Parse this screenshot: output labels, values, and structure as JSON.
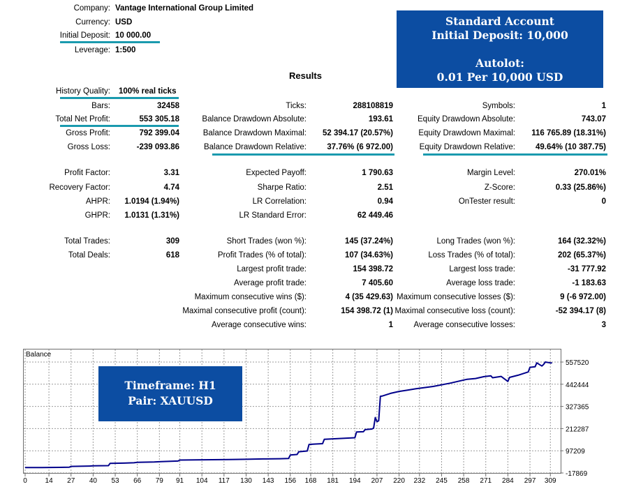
{
  "header": {
    "company_label": "Company:",
    "company": "Vantage International Group Limited",
    "currency_label": "Currency:",
    "currency": "USD",
    "initial_deposit_label": "Initial Deposit:",
    "initial_deposit": "10 000.00",
    "leverage_label": "Leverage:",
    "leverage": "1:500"
  },
  "results_title": "Results",
  "account_box": {
    "line1": "Standard Account",
    "line2": "Initial Deposit: 10,000",
    "line3": "Autolot:",
    "line4": "0.01 Per 10,000 USD"
  },
  "col1": {
    "history_quality_label": "History Quality:",
    "history_quality": "100% real ticks",
    "bars_label": "Bars:",
    "bars": "32458",
    "total_net_profit_label": "Total Net Profit:",
    "total_net_profit": "553 305.18",
    "gross_profit_label": "Gross Profit:",
    "gross_profit": "792 399.04",
    "gross_loss_label": "Gross Loss:",
    "gross_loss": "-239 093.86",
    "profit_factor_label": "Profit Factor:",
    "profit_factor": "3.31",
    "recovery_factor_label": "Recovery Factor:",
    "recovery_factor": "4.74",
    "ahpr_label": "AHPR:",
    "ahpr": "1.0194 (1.94%)",
    "ghpr_label": "GHPR:",
    "ghpr": "1.0131 (1.31%)",
    "total_trades_label": "Total Trades:",
    "total_trades": "309",
    "total_deals_label": "Total Deals:",
    "total_deals": "618"
  },
  "col2": {
    "ticks_label": "Ticks:",
    "ticks": "288108819",
    "bal_dd_abs_label": "Balance Drawdown Absolute:",
    "bal_dd_abs": "193.61",
    "bal_dd_max_label": "Balance Drawdown Maximal:",
    "bal_dd_max": "52 394.17 (20.57%)",
    "bal_dd_rel_label": "Balance Drawdown Relative:",
    "bal_dd_rel": "37.76% (6 972.00)",
    "expected_payoff_label": "Expected Payoff:",
    "expected_payoff": "1 790.63",
    "sharpe_label": "Sharpe Ratio:",
    "sharpe": "2.51",
    "lr_corr_label": "LR Correlation:",
    "lr_corr": "0.94",
    "lr_err_label": "LR Standard Error:",
    "lr_err": "62 449.46",
    "short_trades_label": "Short Trades (won %):",
    "short_trades": "145 (37.24%)",
    "profit_trades_label": "Profit Trades (% of total):",
    "profit_trades": "107 (34.63%)",
    "largest_profit_label": "Largest profit trade:",
    "largest_profit": "154 398.72",
    "avg_profit_label": "Average profit trade:",
    "avg_profit": "7 405.60",
    "max_cons_wins_label": "Maximum consecutive wins ($):",
    "max_cons_wins": "4 (35 429.63)",
    "maximal_cons_profit_label": "Maximal consecutive profit (count):",
    "maximal_cons_profit": "154 398.72 (1)",
    "avg_cons_wins_label": "Average consecutive wins:",
    "avg_cons_wins": "1"
  },
  "col3": {
    "symbols_label": "Symbols:",
    "symbols": "1",
    "eq_dd_abs_label": "Equity Drawdown Absolute:",
    "eq_dd_abs": "743.07",
    "eq_dd_max_label": "Equity Drawdown Maximal:",
    "eq_dd_max": "116 765.89 (18.31%)",
    "eq_dd_rel_label": "Equity Drawdown Relative:",
    "eq_dd_rel": "49.64% (10 387.75)",
    "margin_level_label": "Margin Level:",
    "margin_level": "270.01%",
    "zscore_label": "Z-Score:",
    "zscore": "0.33 (25.86%)",
    "ontester_label": "OnTester result:",
    "ontester": "0",
    "long_trades_label": "Long Trades (won %):",
    "long_trades": "164 (32.32%)",
    "loss_trades_label": "Loss Trades (% of total):",
    "loss_trades": "202 (65.37%)",
    "largest_loss_label": "Largest loss trade:",
    "largest_loss": "-31 777.92",
    "avg_loss_label": "Average loss trade:",
    "avg_loss": "-1 183.63",
    "max_cons_losses_label": "Maximum consecutive losses ($):",
    "max_cons_losses": "9 (-6 972.00)",
    "maximal_cons_loss_label": "Maximal consecutive loss (count):",
    "maximal_cons_loss": "-52 394.17 (8)",
    "avg_cons_losses_label": "Average consecutive losses:",
    "avg_cons_losses": "3"
  },
  "timeframe_box": {
    "line1": "Timeframe: H1",
    "line2": "Pair: XAUUSD"
  },
  "colors": {
    "accent_underline": "#1a9aae",
    "box_blue": "#0c4da2",
    "line_blue": "#00008b"
  },
  "chart_data": {
    "type": "line",
    "title": "Balance",
    "x_ticks": [
      0,
      14,
      27,
      40,
      53,
      66,
      79,
      91,
      104,
      117,
      130,
      143,
      156,
      168,
      181,
      194,
      207,
      220,
      232,
      245,
      258,
      271,
      284,
      297,
      309
    ],
    "y_ticks": [
      -17869,
      97209,
      212287,
      327365,
      442444,
      557520
    ],
    "xlim": [
      0,
      313
    ],
    "ylim": [
      -17869,
      557520
    ],
    "grid": true,
    "series": [
      {
        "x": [
          0,
          10,
          20,
          26,
          27,
          38,
          40,
          49,
          50,
          58,
          64,
          66,
          76,
          80,
          90,
          91,
          100,
          110,
          120,
          130,
          140,
          150,
          155,
          156,
          160,
          161,
          166,
          167,
          170,
          175,
          176,
          185,
          194,
          195,
          199,
          200,
          204,
          205,
          206,
          207,
          208,
          209,
          210,
          215,
          220,
          225,
          230,
          240,
          250,
          260,
          265,
          270,
          274,
          275,
          280,
          284,
          285,
          290,
          296,
          297,
          300,
          301,
          304,
          305,
          306,
          309,
          310
        ],
        "y": [
          10000,
          10000,
          11000,
          12000,
          16000,
          18000,
          19000,
          20000,
          32000,
          33000,
          35000,
          37000,
          39000,
          41000,
          44000,
          49000,
          50000,
          51000,
          52000,
          53000,
          55000,
          56000,
          57000,
          75000,
          78000,
          92000,
          96000,
          130000,
          132000,
          134000,
          157000,
          161000,
          165000,
          195000,
          196000,
          207000,
          210000,
          215000,
          270000,
          248000,
          253000,
          380000,
          381000,
          395000,
          405000,
          412000,
          419000,
          431000,
          448000,
          468000,
          472000,
          482000,
          486000,
          476000,
          483000,
          457000,
          478000,
          489000,
          506000,
          530000,
          533000,
          553000,
          537000,
          545000,
          557520,
          553000,
          553305
        ]
      }
    ]
  }
}
